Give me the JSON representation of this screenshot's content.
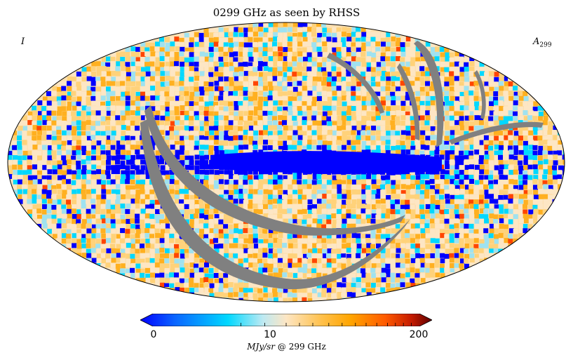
{
  "title": "0299 GHz as seen by RHSS",
  "corner_left": "I",
  "corner_right": {
    "main": "A",
    "sub": "299"
  },
  "projection": "mollweide",
  "colorbar": {
    "min_label": "0",
    "mid_label": "10",
    "max_label": "200",
    "unit_label": "MJy/sr",
    "unit_suffix": "@ 299 GHz",
    "scale": "log",
    "colors": [
      "#0000ff",
      "#0a66ff",
      "#00d8ff",
      "#bde9f2",
      "#fde6c4",
      "#ffc14d",
      "#ffa500",
      "#ff5a00",
      "#c41a00",
      "#5c0000"
    ]
  },
  "map_colors": {
    "low": "#0000ff",
    "cyan": "#00d8ff",
    "light_blue": "#9fe2f0",
    "cream": "#fde6c4",
    "light_orange": "#ffd27a",
    "orange": "#ffb020",
    "red": "#ff4500",
    "no_data": "#808080"
  }
}
